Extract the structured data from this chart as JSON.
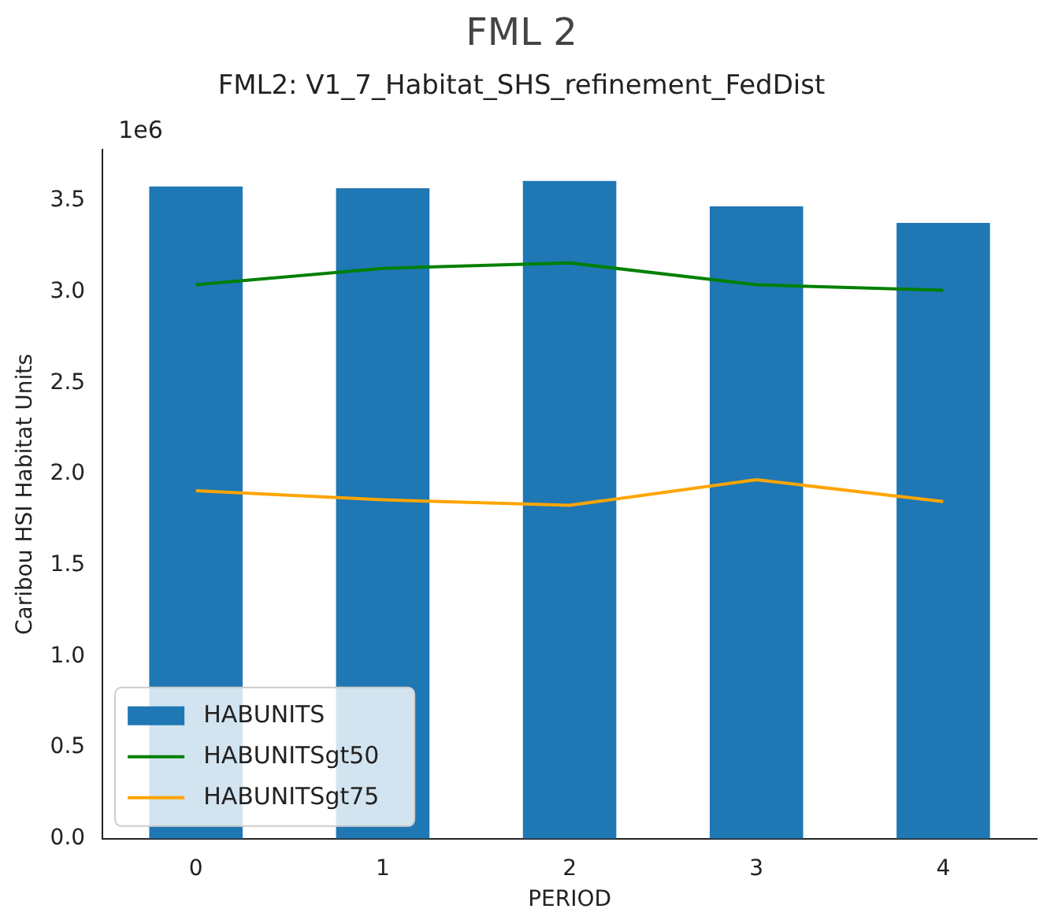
{
  "chart_data": {
    "type": "bar",
    "title": "FML 2",
    "subtitle": "FML2: V1_7_Habitat_SHS_refinement_FedDist",
    "xlabel": "PERIOD",
    "ylabel": "Caribou HSI Habitat Units",
    "annotations": [
      "1e6"
    ],
    "categories": [
      "0",
      "1",
      "2",
      "3",
      "4"
    ],
    "series": [
      {
        "name": "HABUNITS",
        "color": "#1f77b4",
        "values": [
          3.58,
          3.57,
          3.61,
          3.47,
          3.38
        ]
      },
      {
        "name": "HABUNITSgt50",
        "type": "line",
        "color": "#008000",
        "values": [
          3.04,
          3.13,
          3.16,
          3.04,
          3.01
        ]
      },
      {
        "name": "HABUNITSgt75",
        "type": "line",
        "color": "#ffa500",
        "values": [
          1.91,
          1.86,
          1.83,
          1.97,
          1.85
        ]
      }
    ],
    "ylim": [
      0,
      3.78
    ],
    "yticks": [
      {
        "value": 0,
        "label": "0.0"
      },
      0.5,
      {
        "value": 1,
        "label": "1.0"
      },
      1.5,
      {
        "value": 2,
        "label": "2.0"
      },
      2.5,
      {
        "value": 3,
        "label": "3.0"
      },
      3.5
    ],
    "legend": "bottom left",
    "marker": "none",
    "line_style": "solid"
  }
}
